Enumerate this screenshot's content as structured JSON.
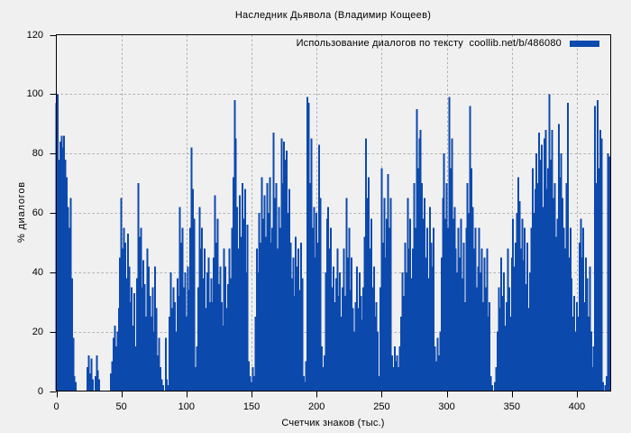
{
  "title": "Наследник Дьявола (Владимир Кощеев)",
  "legend": {
    "label": "Использование диалогов по тексту  coollib.net/b/486080"
  },
  "colors": {
    "bar": "#0c49ad",
    "background": "#f0f0f0",
    "grid": "#b0b0b0",
    "axis": "#000000",
    "text": "#000000"
  },
  "chart_data": {
    "type": "bar",
    "title": "Наследник Дьявола (Владимир Кощеев)",
    "legend_entry": "Использование диалогов по тексту  coollib.net/b/486080",
    "xlabel": "Счетчик знаков (тыс.)",
    "ylabel": "% диалогов",
    "xlim": [
      0,
      426
    ],
    "ylim": [
      0,
      120
    ],
    "grid": true,
    "legend_position": "top-right-inside",
    "xticks": [
      0,
      50,
      100,
      150,
      200,
      250,
      300,
      350,
      400
    ],
    "yticks": [
      0,
      20,
      40,
      60,
      80,
      100,
      120
    ],
    "x_start": 0,
    "x_step": 1,
    "values": [
      97,
      100,
      78,
      84,
      86,
      82,
      86,
      78,
      72,
      62,
      55,
      65,
      38,
      18,
      5,
      3,
      0,
      0,
      0,
      0,
      0,
      0,
      0,
      0,
      8,
      12,
      6,
      11,
      4,
      0,
      5,
      12,
      7,
      4,
      0,
      0,
      0,
      0,
      0,
      0,
      0,
      0,
      6,
      10,
      18,
      22,
      15,
      20,
      28,
      45,
      65,
      48,
      55,
      50,
      38,
      53,
      42,
      30,
      35,
      22,
      33,
      15,
      38,
      70,
      52,
      55,
      35,
      44,
      36,
      25,
      48,
      42,
      32,
      25,
      35,
      20,
      42,
      28,
      12,
      18,
      8,
      4,
      2,
      0,
      18,
      4,
      2,
      25,
      40,
      28,
      35,
      30,
      20,
      38,
      32,
      62,
      50,
      55,
      35,
      40,
      25,
      42,
      34,
      55,
      82,
      68,
      58,
      8,
      15,
      35,
      62,
      48,
      55,
      38,
      48,
      28,
      40,
      45,
      30,
      38,
      30,
      45,
      66,
      50,
      58,
      36,
      42,
      30,
      22,
      48,
      42,
      28,
      36,
      48,
      38,
      55,
      72,
      98,
      85,
      62,
      48,
      66,
      52,
      70,
      58,
      68,
      40,
      56,
      10,
      5,
      3,
      8,
      5,
      25,
      48,
      40,
      60,
      50,
      72,
      58,
      66,
      52,
      70,
      60,
      72,
      50,
      55,
      87,
      65,
      70,
      48,
      62,
      55,
      85,
      70,
      84,
      78,
      81,
      60,
      68,
      50,
      38,
      45,
      32,
      52,
      42,
      48,
      34,
      50,
      38,
      5,
      3,
      10,
      99,
      97,
      70,
      85,
      55,
      62,
      45,
      60,
      50,
      83,
      65,
      15,
      8,
      12,
      40,
      58,
      62,
      48,
      55,
      35,
      42,
      30,
      38,
      48,
      32,
      40,
      25,
      35,
      48,
      32,
      65,
      45,
      55,
      34,
      45,
      28,
      20,
      30,
      42,
      28,
      40,
      32,
      24,
      35,
      52,
      85,
      65,
      72,
      48,
      58,
      35,
      42,
      25,
      30,
      20,
      5,
      35,
      75,
      50,
      65,
      45,
      58,
      73,
      55,
      65,
      12,
      8,
      15,
      10,
      12,
      8,
      15,
      25,
      40,
      32,
      50,
      40,
      65,
      48,
      58,
      38,
      48,
      70,
      55,
      95,
      75,
      85,
      88,
      70,
      58,
      65,
      45,
      55,
      38,
      62,
      50,
      42,
      55,
      15,
      10,
      18,
      12,
      20,
      45,
      65,
      80,
      58,
      70,
      55,
      99,
      75,
      85,
      58,
      62,
      48,
      40,
      55,
      45,
      58,
      38,
      50,
      30,
      55,
      70,
      60,
      96,
      75,
      62,
      48,
      55,
      35,
      42,
      55,
      40,
      48,
      30,
      45,
      35,
      48,
      25,
      30,
      5,
      2,
      0,
      3,
      8,
      20,
      35,
      28,
      45,
      32,
      40,
      22,
      30,
      48,
      35,
      25,
      45,
      58,
      42,
      50,
      60,
      72,
      64,
      48,
      58,
      44,
      55,
      36,
      50,
      28,
      40,
      55,
      75,
      60,
      68,
      80,
      70,
      87,
      78,
      83,
      62,
      85,
      88,
      68,
      75,
      100,
      78,
      88,
      65,
      70,
      52,
      58,
      90,
      72,
      80,
      65,
      55,
      48,
      70,
      97,
      45,
      55,
      38,
      25,
      32,
      20,
      30,
      25,
      50,
      58,
      45,
      55,
      30,
      45,
      38,
      25,
      42,
      20,
      8,
      15,
      96,
      70,
      98,
      75,
      88,
      85,
      3,
      0,
      2,
      5,
      80,
      79
    ]
  }
}
